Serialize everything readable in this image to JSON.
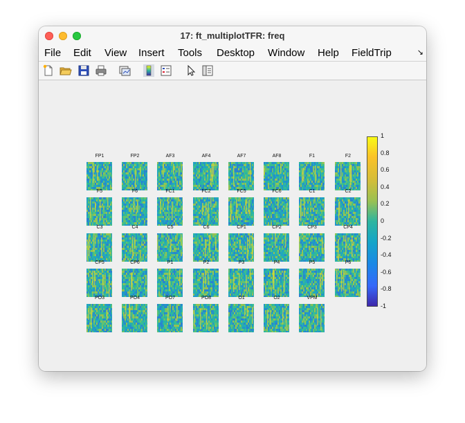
{
  "window": {
    "title": "17: ft_multiplotTFR: freq"
  },
  "menu": {
    "items": [
      "File",
      "Edit",
      "View",
      "Insert",
      "Tools",
      "Desktop",
      "Window",
      "Help",
      "FieldTrip"
    ],
    "overflow_icon": "arrow-down-right-icon"
  },
  "toolbar": {
    "icons": [
      "new-figure-icon",
      "open-file-icon",
      "save-icon",
      "print-icon",
      "link-plot-icon",
      "colorbar-icon",
      "legend-icon",
      "edit-plot-arrow-icon",
      "property-inspector-icon"
    ]
  },
  "plot": {
    "channels": [
      [
        "FP1",
        "FP2",
        "AF3",
        "AF4",
        "AF7",
        "AF8",
        "F1",
        "F2"
      ],
      [
        "F5",
        "F6",
        "FC1",
        "FC2",
        "FC5",
        "FC6",
        "C1",
        "C2"
      ],
      [
        "C3",
        "C4",
        "C5",
        "C6",
        "CP1",
        "CP2",
        "CP3",
        "CP4"
      ],
      [
        "CP5",
        "CP6",
        "P1",
        "P2",
        "P3",
        "P4",
        "P5",
        "P6"
      ],
      [
        "PO3",
        "PO4",
        "PO7",
        "PO8",
        "O1",
        "O2",
        "VPM"
      ]
    ],
    "colorbar_ticks": [
      "1",
      "0.8",
      "0.6",
      "0.4",
      "0.2",
      "0",
      "-0.2",
      "-0.4",
      "-0.6",
      "-0.8",
      "-1"
    ],
    "colormap": "parula",
    "color_limits": [
      -1,
      1
    ],
    "colors": {
      "low": "#3e26a8",
      "mid": "#2db5a0",
      "high": "#f9fb15",
      "background": "#efefef"
    }
  }
}
